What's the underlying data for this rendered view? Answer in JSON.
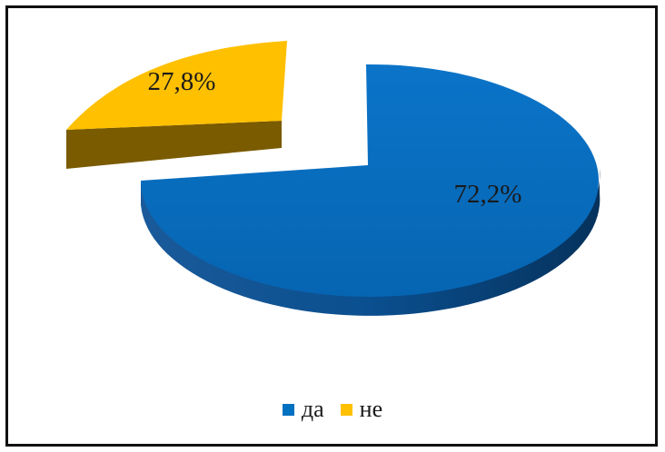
{
  "chart_data": {
    "type": "pie",
    "style": "3d-exploded",
    "slices": [
      {
        "name": "да",
        "value": 72.2,
        "label": "72,2%",
        "color": "#0070C0"
      },
      {
        "name": "не",
        "value": 27.8,
        "label": "27,8%",
        "color": "#FFC000"
      }
    ],
    "legend": {
      "placement": "bottom",
      "items": [
        {
          "label": "да",
          "color": "#0070C0"
        },
        {
          "label": "не",
          "color": "#FFC000"
        }
      ]
    }
  }
}
